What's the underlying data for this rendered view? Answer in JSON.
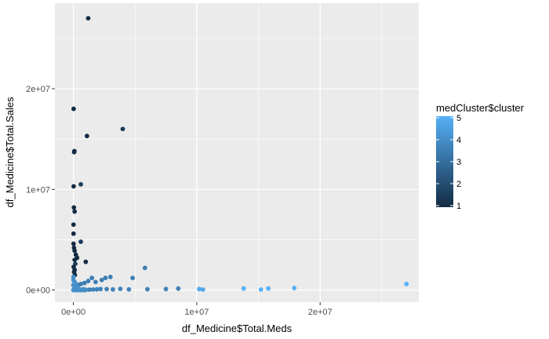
{
  "chart_data": {
    "type": "scatter",
    "xlabel": "df_Medicine$Total.Meds",
    "ylabel": "df_Medicine$Total.Sales",
    "xlim": [
      -1500000,
      28000000
    ],
    "ylim": [
      -1200000,
      28500000
    ],
    "x_ticks": [
      {
        "value": 0,
        "label": "0e+00"
      },
      {
        "value": 10000000,
        "label": "1e+07"
      },
      {
        "value": 20000000,
        "label": "2e+07"
      }
    ],
    "y_ticks": [
      {
        "value": 0,
        "label": "0e+00"
      },
      {
        "value": 10000000,
        "label": "1e+07"
      },
      {
        "value": 20000000,
        "label": "2e+07"
      }
    ],
    "grid": true,
    "legend": {
      "title": "medCluster$cluster",
      "placement": "right",
      "min": 1,
      "max": 5,
      "ticks": [
        1,
        2,
        3,
        4,
        5
      ],
      "color_low": "#132b43",
      "color_high": "#56b1f7"
    },
    "series": [
      {
        "x": [
          1200000,
          20000,
          80000,
          60000,
          4000000,
          1100000,
          20000,
          40000,
          600000,
          100000,
          10000,
          10000,
          600000,
          10000,
          50000,
          100000,
          200000,
          300000,
          100000,
          1000000,
          150000,
          20000,
          100000,
          60000,
          120000
        ],
        "y": [
          27000000,
          18000000,
          13800000,
          13700000,
          16000000,
          15300000,
          10300000,
          8200000,
          10500000,
          7800000,
          6500000,
          5600000,
          4800000,
          4600000,
          4200000,
          3900000,
          3500000,
          3200000,
          3000000,
          2800000,
          2600000,
          2300000,
          2000000,
          1800000,
          1500000
        ],
        "value": [
          1,
          1,
          1,
          1,
          1.5,
          1,
          1,
          1,
          1.5,
          1,
          1,
          1,
          1.5,
          1,
          1,
          1,
          1,
          1,
          1,
          1,
          1.5,
          1,
          1,
          1,
          1
        ]
      },
      {
        "x": [
          5800000,
          4800000,
          3000000,
          2600000,
          2300000,
          1800000,
          1500000,
          1200000,
          900000,
          600000,
          400000,
          200000,
          100000,
          50000
        ],
        "y": [
          2200000,
          1200000,
          1300000,
          1200000,
          1000000,
          800000,
          1200000,
          900000,
          700000,
          600000,
          500000,
          300000,
          200000,
          100000
        ],
        "value": [
          3.5,
          3.5,
          3.5,
          3.5,
          3.5,
          3.5,
          3.5,
          3.5,
          3.5,
          3.5,
          3.5,
          3.5,
          3.5,
          3.5
        ]
      },
      {
        "x": [
          8500000,
          7500000,
          6000000,
          4500000,
          3800000,
          3200000,
          2700000,
          2200000,
          1900000,
          1600000,
          1300000,
          1000000,
          800000,
          500000,
          300000,
          100000
        ],
        "y": [
          150000,
          100000,
          80000,
          60000,
          120000,
          60000,
          90000,
          100000,
          70000,
          50000,
          40000,
          30000,
          80000,
          70000,
          40000,
          20000
        ],
        "value": [
          3.6,
          3.6,
          3.6,
          3.6,
          3.6,
          3.6,
          3.6,
          3.6,
          3.6,
          3.6,
          3.6,
          3.6,
          3.6,
          3.6,
          3.6,
          3.6
        ]
      },
      {
        "x": [
          10200000,
          10500000,
          13800000,
          15200000,
          15800000,
          17900000,
          27000000
        ],
        "y": [
          100000,
          50000,
          150000,
          50000,
          150000,
          200000,
          600000
        ],
        "value": [
          4.7,
          4.7,
          5,
          5,
          5,
          5,
          5
        ]
      },
      {
        "x": [
          0,
          50000,
          100000,
          200000,
          300000,
          400000,
          500000,
          600000,
          700000,
          800000,
          900000,
          1000000,
          0,
          100000,
          200000,
          300000,
          0,
          100000,
          200000,
          0
        ],
        "y": [
          0,
          0,
          0,
          0,
          0,
          0,
          0,
          0,
          0,
          0,
          0,
          0,
          500000,
          400000,
          300000,
          200000,
          1000000,
          800000,
          600000,
          1300000
        ],
        "value": [
          4,
          4,
          4,
          4,
          4,
          4,
          4,
          4,
          4,
          4,
          4,
          4,
          4,
          4,
          4,
          4,
          4,
          4,
          4,
          4
        ]
      }
    ]
  }
}
